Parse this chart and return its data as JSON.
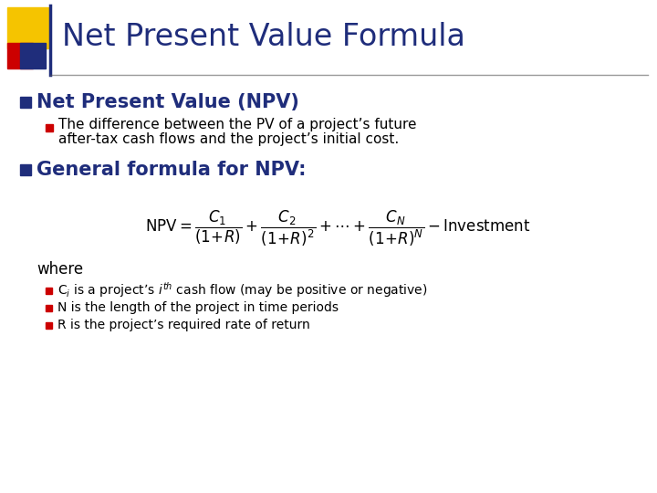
{
  "title": "Net Present Value Formula",
  "title_color": "#1F2D7B",
  "bg_color": "#FFFFFF",
  "bullet1_header": "Net Present Value (NPV)",
  "bullet1_text_line1": "The difference between the PV of a project’s future",
  "bullet1_text_line2": "after-tax cash flows and the project’s initial cost.",
  "bullet2_header": "General formula for NPV:",
  "where_label": "where",
  "where_bullet1": "C$_i$ is a project’s $i^{th}$ cash flow (may be positive or negative)",
  "where_bullet2": "N is the length of the project in time periods",
  "where_bullet3": "R is the project’s required rate of return",
  "dark_blue": "#1F2D7B",
  "red": "#CC0000",
  "black": "#000000",
  "yellow": "#F5C400"
}
